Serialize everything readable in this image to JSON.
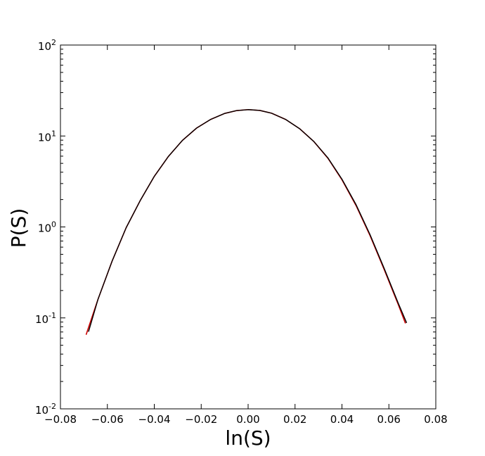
{
  "chart_data": {
    "type": "line",
    "title": "",
    "xlabel": "ln(S)",
    "ylabel": "P(S)",
    "xlim": [
      -0.08,
      0.08
    ],
    "ylim": [
      0.01,
      100
    ],
    "yscale": "log",
    "grid": false,
    "legend": "none",
    "x_ticks": [
      -0.08,
      -0.06,
      -0.04,
      -0.02,
      0.0,
      0.02,
      0.04,
      0.06,
      0.08
    ],
    "x_tick_labels": [
      "−0.08",
      "−0.06",
      "−0.04",
      "−0.02",
      "0.00",
      "0.02",
      "0.04",
      "0.06",
      "0.08"
    ],
    "y_ticks": [
      0.01,
      0.1,
      1,
      10,
      100
    ],
    "y_tick_labels": [
      {
        "base": "10",
        "exp": "-2"
      },
      {
        "base": "10",
        "exp": "-1"
      },
      {
        "base": "10",
        "exp": "0"
      },
      {
        "base": "10",
        "exp": "1"
      },
      {
        "base": "10",
        "exp": "2"
      }
    ],
    "series": [
      {
        "color": "#cc0000",
        "x": [
          -0.069,
          -0.064,
          -0.058,
          -0.052,
          -0.046,
          -0.04,
          -0.034,
          -0.028,
          -0.022,
          -0.016,
          -0.01,
          -0.005,
          0.0,
          0.005,
          0.01,
          0.016,
          0.022,
          0.028,
          0.034,
          0.04,
          0.046,
          0.052,
          0.058,
          0.064,
          0.067
        ],
        "y": [
          0.066,
          0.16,
          0.42,
          0.98,
          1.95,
          3.6,
          5.95,
          8.95,
          12.2,
          15.2,
          17.7,
          19.0,
          19.5,
          19.1,
          17.8,
          15.2,
          12.0,
          8.7,
          5.7,
          3.3,
          1.72,
          0.8,
          0.34,
          0.14,
          0.088
        ]
      },
      {
        "color": "#000000",
        "x": [
          -0.068,
          -0.064,
          -0.058,
          -0.052,
          -0.046,
          -0.04,
          -0.034,
          -0.028,
          -0.022,
          -0.016,
          -0.01,
          -0.005,
          0.0,
          0.005,
          0.01,
          0.016,
          0.022,
          0.028,
          0.034,
          0.04,
          0.046,
          0.052,
          0.058,
          0.064,
          0.0675
        ],
        "y": [
          0.071,
          0.16,
          0.42,
          0.98,
          1.95,
          3.6,
          5.95,
          8.95,
          12.2,
          15.2,
          17.7,
          19.0,
          19.5,
          19.1,
          17.8,
          15.2,
          12.0,
          8.7,
          5.75,
          3.35,
          1.76,
          0.82,
          0.35,
          0.145,
          0.089
        ]
      }
    ]
  }
}
